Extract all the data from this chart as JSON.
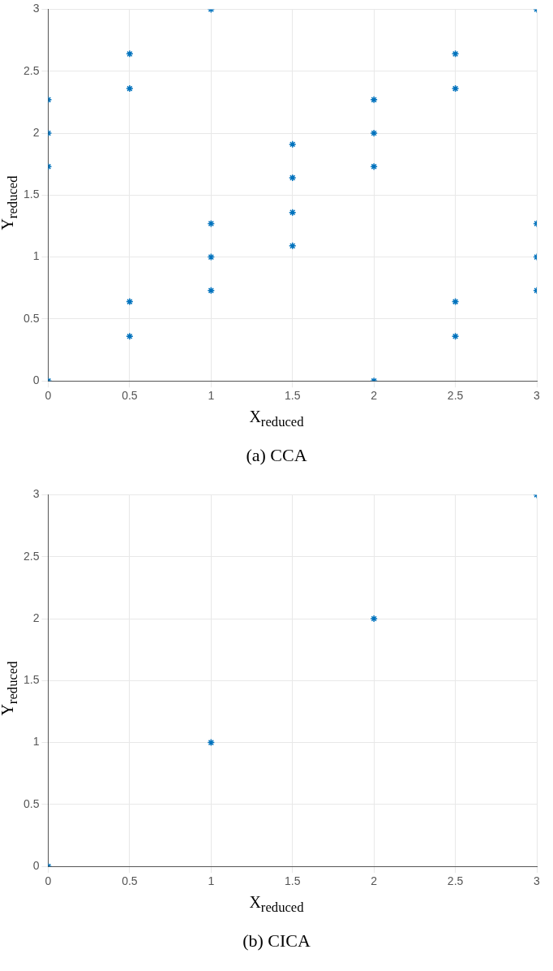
{
  "chart_data": [
    {
      "type": "scatter",
      "xlabel": "X$_{reduced}$",
      "ylabel": "Y$_{reduced}$",
      "annotations": [
        "(a) CCA"
      ],
      "marker": "cross",
      "grid": true,
      "legend": false,
      "xlim": [
        0,
        3
      ],
      "ylim": [
        0,
        3
      ],
      "xticks": [
        0,
        0.5,
        1,
        1.5,
        2,
        2.5,
        3
      ],
      "yticks": [
        0,
        0.5,
        1,
        1.5,
        2,
        2.5,
        3
      ],
      "series": [
        {
          "color": "#0072bd",
          "x": [
            0,
            0,
            0,
            0,
            0.5,
            0.5,
            0.5,
            0.5,
            1,
            1,
            1,
            1,
            1.5,
            1.5,
            1.5,
            1.5,
            2,
            2,
            2,
            2,
            2.5,
            2.5,
            2.5,
            2.5,
            3,
            3,
            3,
            3
          ],
          "values": [
            2.27,
            2.0,
            1.73,
            0,
            2.64,
            2.36,
            0.64,
            0.36,
            3,
            1.27,
            1.0,
            0.73,
            1.91,
            1.64,
            1.36,
            1.09,
            2.27,
            2.0,
            1.73,
            0,
            2.64,
            2.36,
            0.64,
            0.36,
            3,
            1.27,
            1.0,
            0.73
          ]
        }
      ]
    },
    {
      "type": "scatter",
      "xlabel": "X$_{reduced}$",
      "ylabel": "Y$_{reduced}$",
      "annotations": [
        "(b) CICA"
      ],
      "marker": "cross",
      "grid": true,
      "legend": false,
      "xlim": [
        0,
        3
      ],
      "ylim": [
        0,
        3
      ],
      "xticks": [
        0,
        0.5,
        1,
        1.5,
        2,
        2.5,
        3
      ],
      "yticks": [
        0,
        0.5,
        1,
        1.5,
        2,
        2.5,
        3
      ],
      "series": [
        {
          "color": "#0072bd",
          "x": [
            0,
            1,
            2,
            3
          ],
          "values": [
            0,
            1,
            2,
            3
          ]
        }
      ]
    }
  ]
}
